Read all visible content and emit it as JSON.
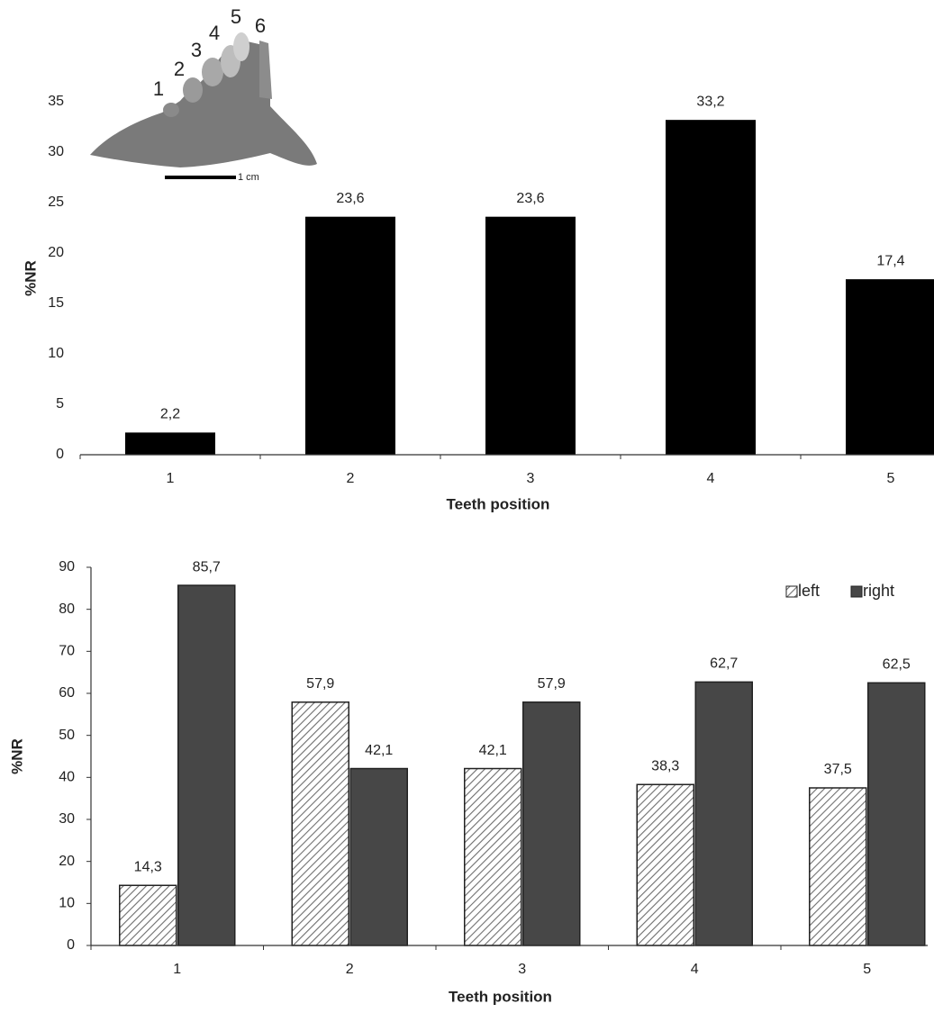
{
  "chart_data": [
    {
      "type": "bar",
      "xlabel": "Teeth position",
      "ylabel": "%NR",
      "categories": [
        "1",
        "2",
        "3",
        "4",
        "5"
      ],
      "values": [
        2.2,
        23.6,
        23.6,
        33.2,
        17.4
      ],
      "value_labels": [
        "2,2",
        "23,6",
        "23,6",
        "33,2",
        "17,4"
      ],
      "color": "#000000",
      "ylim": [
        0,
        35
      ],
      "yticks": [
        0,
        5,
        10,
        15,
        20,
        25,
        30,
        35
      ],
      "grid": false,
      "inset_labels": [
        "1",
        "2",
        "3",
        "4",
        "5",
        "6"
      ],
      "scale_label": "1 cm"
    },
    {
      "type": "grouped-bar",
      "xlabel": "Teeth position",
      "ylabel": "%NR",
      "categories": [
        "1",
        "2",
        "3",
        "4",
        "5"
      ],
      "series": [
        {
          "name": "left",
          "color": "#6e6e6e",
          "pattern": "diagonal-hatch",
          "values": [
            14.3,
            57.9,
            42.1,
            38.3,
            37.5
          ],
          "value_labels": [
            "14,3",
            "57,9",
            "42,1",
            "38,3",
            "37,5"
          ]
        },
        {
          "name": "right",
          "color": "#474747",
          "values": [
            85.7,
            42.1,
            57.9,
            62.7,
            62.5
          ],
          "value_labels": [
            "85,7",
            "42,1",
            "57,9",
            "62,7",
            "62,5"
          ]
        }
      ],
      "ylim": [
        0,
        90
      ],
      "yticks": [
        0,
        10,
        20,
        30,
        40,
        50,
        60,
        70,
        80,
        90
      ],
      "grid": false,
      "legend": "top-right"
    }
  ]
}
